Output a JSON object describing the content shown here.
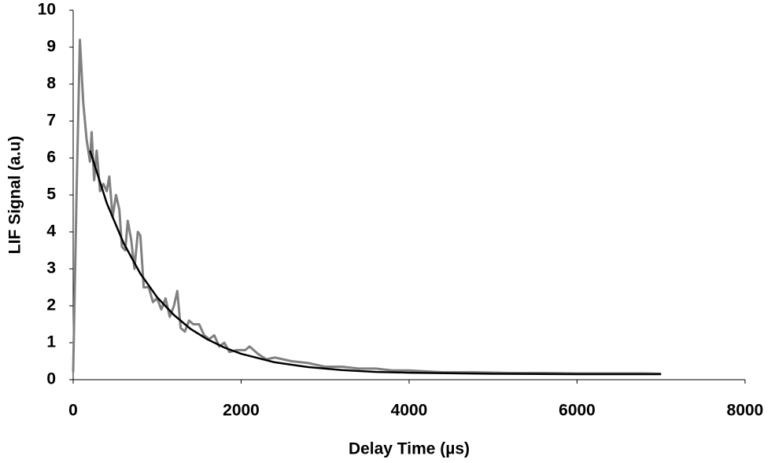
{
  "chart_data": {
    "type": "line",
    "x_label": "Delay Time (µs)",
    "y_label": "LIF Signal (a.u)",
    "xlim": [
      0,
      8000
    ],
    "xticks": [
      0,
      2000,
      4000,
      6000,
      8000
    ],
    "ylim": [
      0,
      10
    ],
    "yticks": [
      0,
      1,
      2,
      3,
      4,
      5,
      6,
      7,
      8,
      9,
      10
    ],
    "grid": false,
    "series": [
      {
        "color": "#808080",
        "x": [
          0,
          40,
          80,
          120,
          160,
          200,
          220,
          250,
          280,
          320,
          360,
          400,
          430,
          470,
          510,
          550,
          580,
          620,
          650,
          690,
          730,
          770,
          800,
          840,
          900,
          950,
          1000,
          1050,
          1100,
          1150,
          1200,
          1240,
          1280,
          1330,
          1380,
          1430,
          1500,
          1560,
          1620,
          1680,
          1740,
          1800,
          1860,
          1950,
          2050,
          2100,
          2200,
          2300,
          2400,
          2500,
          2600,
          2800,
          3000,
          3200,
          3400,
          3600,
          3800,
          4000,
          4400,
          4800,
          5200,
          5600,
          6000,
          6400,
          6800,
          7000
        ],
        "values": [
          0.2,
          5,
          9.2,
          7.5,
          6.5,
          5.9,
          6.7,
          5.4,
          6.2,
          5.1,
          5.3,
          5.1,
          5.5,
          4.4,
          5.0,
          4.6,
          3.6,
          3.5,
          4.3,
          3.8,
          3.0,
          4.0,
          3.9,
          2.5,
          2.5,
          2.1,
          2.2,
          1.9,
          2.2,
          1.7,
          2.0,
          2.4,
          1.4,
          1.3,
          1.6,
          1.5,
          1.5,
          1.2,
          1.1,
          1.2,
          0.9,
          1.0,
          0.75,
          0.8,
          0.8,
          0.9,
          0.7,
          0.55,
          0.6,
          0.55,
          0.5,
          0.45,
          0.35,
          0.35,
          0.3,
          0.3,
          0.25,
          0.25,
          0.2,
          0.2,
          0.18,
          0.18,
          0.17,
          0.17,
          0.17,
          0.16
        ]
      },
      {
        "color": "#000000",
        "x": [
          200,
          400,
          600,
          800,
          1000,
          1200,
          1400,
          1600,
          1800,
          2000,
          2400,
          2800,
          3200,
          3600,
          4000,
          5000,
          6000,
          7000
        ],
        "values": [
          6.2,
          4.78,
          3.7,
          2.87,
          2.23,
          1.75,
          1.37,
          1.09,
          0.87,
          0.7,
          0.47,
          0.34,
          0.26,
          0.21,
          0.19,
          0.16,
          0.15,
          0.15
        ]
      }
    ]
  }
}
